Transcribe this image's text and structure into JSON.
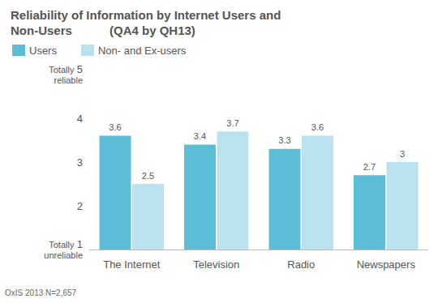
{
  "chart_data": {
    "type": "bar",
    "title": "Reliability of Information by Internet Users and Non-Users",
    "subtitle": "(QA4 by QH13)",
    "categories": [
      "The Internet",
      "Television",
      "Radio",
      "Newspapers"
    ],
    "series": [
      {
        "name": "Users",
        "color": "#5bbdd6",
        "values": [
          3.6,
          3.4,
          3.3,
          2.7
        ]
      },
      {
        "name": "Non- and Ex-users",
        "color": "#b9e2ee",
        "values": [
          2.5,
          3.7,
          3.6,
          3.0
        ]
      }
    ],
    "ylim": [
      1,
      5
    ],
    "yticks": [
      1,
      2,
      3,
      4,
      5
    ],
    "annotations": [
      {
        "text": "Totally reliable",
        "y": 5
      },
      {
        "text": "Totally unreliable",
        "y": 1
      }
    ],
    "source": "OxIS 2013 N=2,657",
    "grid": false,
    "legend": "top-left",
    "data_labels": true
  }
}
